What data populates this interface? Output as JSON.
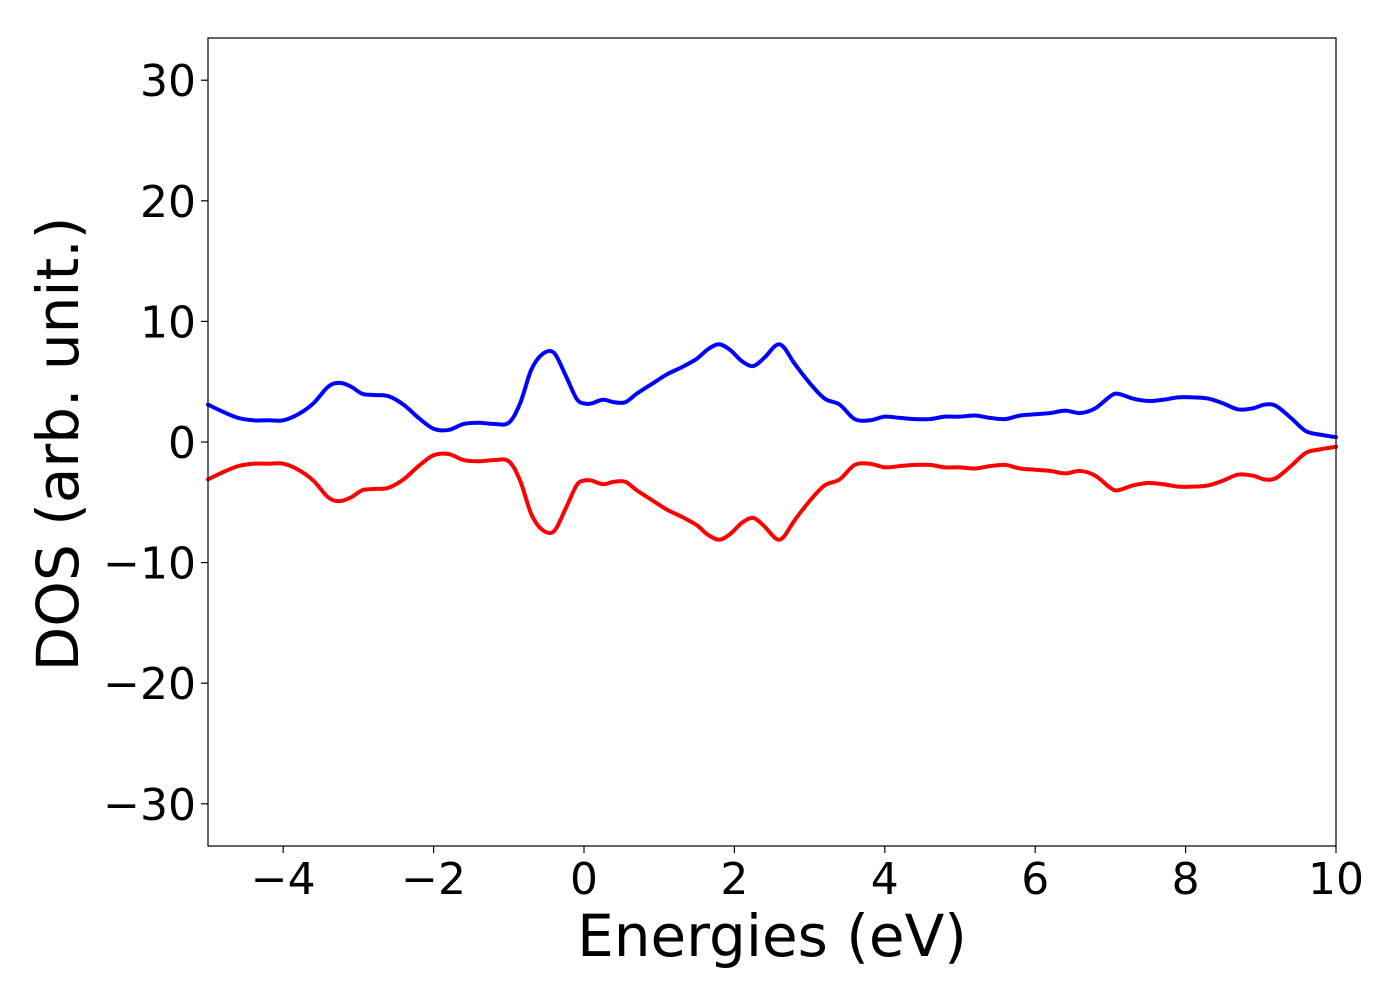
{
  "chart_data": {
    "type": "line",
    "title": "",
    "xlabel": "Energies (eV)",
    "ylabel": "DOS (arb. unit.)",
    "xlim": [
      -5,
      10
    ],
    "ylim": [
      -33.5,
      33.5
    ],
    "xticks": [
      -4,
      -2,
      0,
      2,
      4,
      6,
      8,
      10
    ],
    "yticks": [
      30,
      20,
      10,
      0,
      -10,
      -20,
      -30
    ],
    "xtick_labels": [
      "−4",
      "−2",
      "0",
      "2",
      "4",
      "6",
      "8",
      "10"
    ],
    "ytick_labels": [
      "30",
      "20",
      "10",
      "0",
      "−10",
      "−20",
      "−30"
    ],
    "grid": false,
    "legend": "none",
    "series": [
      {
        "color": "#0000ff",
        "x": [
          -5.0,
          -4.8,
          -4.6,
          -4.4,
          -4.2,
          -4.0,
          -3.8,
          -3.6,
          -3.4,
          -3.25,
          -3.1,
          -2.95,
          -2.8,
          -2.6,
          -2.4,
          -2.2,
          -2.0,
          -1.8,
          -1.6,
          -1.4,
          -1.2,
          -1.0,
          -0.85,
          -0.7,
          -0.55,
          -0.4,
          -0.25,
          -0.1,
          0.0,
          0.1,
          0.25,
          0.4,
          0.55,
          0.7,
          0.9,
          1.1,
          1.3,
          1.5,
          1.65,
          1.8,
          1.95,
          2.1,
          2.25,
          2.4,
          2.55,
          2.65,
          2.8,
          3.0,
          3.2,
          3.4,
          3.6,
          3.8,
          4.0,
          4.2,
          4.4,
          4.6,
          4.8,
          5.0,
          5.2,
          5.4,
          5.6,
          5.8,
          6.0,
          6.2,
          6.4,
          6.6,
          6.8,
          7.0,
          7.1,
          7.3,
          7.5,
          7.7,
          7.9,
          8.1,
          8.3,
          8.5,
          8.7,
          8.9,
          9.05,
          9.2,
          9.4,
          9.6,
          9.8,
          10.0
        ],
        "values": [
          3.1,
          2.5,
          2.0,
          1.8,
          1.8,
          1.8,
          2.3,
          3.2,
          4.6,
          4.9,
          4.6,
          4.0,
          3.9,
          3.8,
          3.1,
          2.0,
          1.1,
          1.0,
          1.5,
          1.6,
          1.5,
          1.6,
          3.2,
          6.0,
          7.3,
          7.4,
          5.6,
          3.6,
          3.2,
          3.2,
          3.5,
          3.3,
          3.3,
          4.0,
          4.8,
          5.6,
          6.2,
          6.9,
          7.7,
          8.1,
          7.6,
          6.7,
          6.3,
          7.0,
          8.0,
          7.9,
          6.5,
          4.9,
          3.6,
          3.1,
          1.9,
          1.8,
          2.1,
          2.0,
          1.9,
          1.9,
          2.1,
          2.1,
          2.2,
          2.0,
          1.9,
          2.2,
          2.3,
          2.4,
          2.6,
          2.4,
          2.8,
          3.8,
          4.0,
          3.6,
          3.4,
          3.5,
          3.7,
          3.7,
          3.6,
          3.2,
          2.7,
          2.8,
          3.1,
          3.0,
          2.0,
          0.9,
          0.6,
          0.4
        ]
      },
      {
        "color": "#ff0000",
        "x": [
          -5.0,
          -4.8,
          -4.6,
          -4.4,
          -4.2,
          -4.0,
          -3.8,
          -3.6,
          -3.4,
          -3.25,
          -3.1,
          -2.95,
          -2.8,
          -2.6,
          -2.4,
          -2.2,
          -2.0,
          -1.8,
          -1.6,
          -1.4,
          -1.2,
          -1.0,
          -0.85,
          -0.7,
          -0.55,
          -0.4,
          -0.25,
          -0.1,
          0.0,
          0.1,
          0.25,
          0.4,
          0.55,
          0.7,
          0.9,
          1.1,
          1.3,
          1.5,
          1.65,
          1.8,
          1.95,
          2.1,
          2.25,
          2.4,
          2.55,
          2.65,
          2.8,
          3.0,
          3.2,
          3.4,
          3.6,
          3.8,
          4.0,
          4.2,
          4.4,
          4.6,
          4.8,
          5.0,
          5.2,
          5.4,
          5.6,
          5.8,
          6.0,
          6.2,
          6.4,
          6.6,
          6.8,
          7.0,
          7.1,
          7.3,
          7.5,
          7.7,
          7.9,
          8.1,
          8.3,
          8.5,
          8.7,
          8.9,
          9.05,
          9.2,
          9.4,
          9.6,
          9.8,
          10.0
        ],
        "values": [
          -3.1,
          -2.5,
          -2.0,
          -1.8,
          -1.8,
          -1.8,
          -2.3,
          -3.2,
          -4.6,
          -4.9,
          -4.6,
          -4.0,
          -3.9,
          -3.8,
          -3.1,
          -2.0,
          -1.1,
          -1.0,
          -1.5,
          -1.6,
          -1.5,
          -1.6,
          -3.2,
          -6.0,
          -7.3,
          -7.4,
          -5.6,
          -3.6,
          -3.2,
          -3.2,
          -3.5,
          -3.3,
          -3.3,
          -4.0,
          -4.8,
          -5.6,
          -6.2,
          -6.9,
          -7.7,
          -8.1,
          -7.6,
          -6.7,
          -6.3,
          -7.0,
          -8.0,
          -7.9,
          -6.5,
          -4.9,
          -3.6,
          -3.1,
          -1.9,
          -1.8,
          -2.1,
          -2.0,
          -1.9,
          -1.9,
          -2.1,
          -2.1,
          -2.2,
          -2.0,
          -1.9,
          -2.2,
          -2.3,
          -2.4,
          -2.6,
          -2.4,
          -2.8,
          -3.8,
          -4.0,
          -3.6,
          -3.4,
          -3.5,
          -3.7,
          -3.7,
          -3.6,
          -3.2,
          -2.7,
          -2.8,
          -3.1,
          -3.0,
          -2.0,
          -0.9,
          -0.6,
          -0.4
        ]
      }
    ]
  }
}
